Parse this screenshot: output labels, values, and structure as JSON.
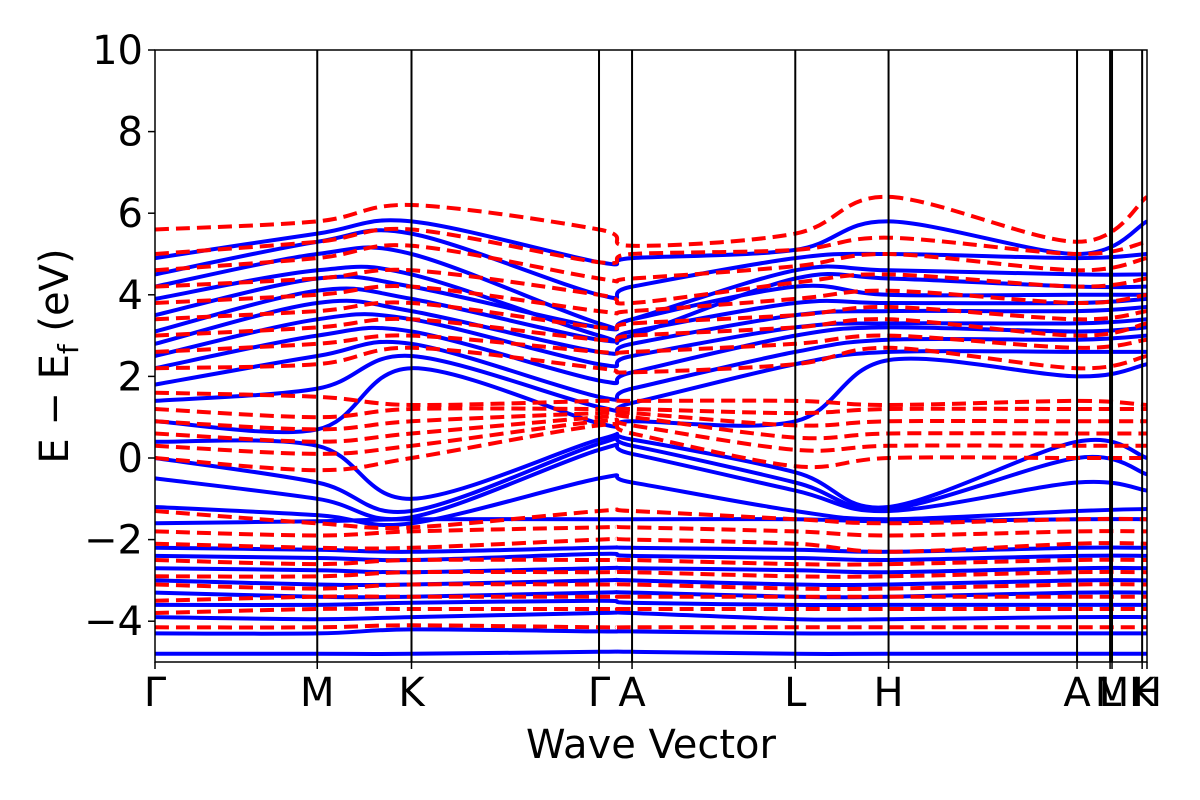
{
  "chart_data": {
    "type": "line",
    "title": "",
    "xlabel": "Wave Vector",
    "ylabel": "E − E_f (eV)",
    "ylabel_parts": {
      "pre": "E − E",
      "sub": "f",
      "post": " (eV)"
    },
    "ylim": [
      -5,
      10
    ],
    "yticks": [
      -4,
      -2,
      0,
      2,
      4,
      6,
      8,
      10
    ],
    "ytick_labels": [
      "−4",
      "−2",
      "0",
      "2",
      "4",
      "6",
      "8",
      "10"
    ],
    "xlim": [
      0,
      10.21
    ],
    "kpoints": [
      {
        "label": "Γ",
        "x": 0.0
      },
      {
        "label": "M",
        "x": 1.67
      },
      {
        "label": "K",
        "x": 2.64
      },
      {
        "label": "Γ",
        "x": 4.57
      },
      {
        "label": "A",
        "x": 4.91
      },
      {
        "label": "L",
        "x": 6.59
      },
      {
        "label": "H",
        "x": 7.55
      },
      {
        "label": "A",
        "x": 9.49
      },
      {
        "label": "L",
        "x": 9.83
      },
      {
        "label": "M",
        "x": 9.85
      },
      {
        "label": "K",
        "x": 10.16
      },
      {
        "label": "H",
        "x": 10.21
      }
    ],
    "grid": false,
    "legend": "none",
    "series": [
      {
        "style": "solid",
        "color": "#0000ff",
        "x": [
          0,
          1.67,
          2.64,
          4.57,
          4.91,
          6.59,
          7.55,
          9.49,
          10.21
        ],
        "bands": [
          [
            -4.8,
            -4.8,
            -4.8,
            -4.75,
            -4.75,
            -4.8,
            -4.8,
            -4.8,
            -4.8
          ],
          [
            -4.3,
            -4.3,
            -4.2,
            -4.25,
            -4.25,
            -4.3,
            -4.3,
            -4.3,
            -4.3
          ],
          [
            -3.9,
            -3.95,
            -3.9,
            -3.8,
            -3.8,
            -3.95,
            -3.95,
            -3.9,
            -3.9
          ],
          [
            -3.6,
            -3.6,
            -3.55,
            -3.5,
            -3.55,
            -3.6,
            -3.6,
            -3.6,
            -3.6
          ],
          [
            -3.3,
            -3.4,
            -3.4,
            -3.3,
            -3.3,
            -3.4,
            -3.4,
            -3.3,
            -3.3
          ],
          [
            -3.0,
            -3.1,
            -3.1,
            -3.0,
            -3.0,
            -3.1,
            -3.1,
            -3.0,
            -3.0
          ],
          [
            -2.7,
            -2.75,
            -2.8,
            -2.7,
            -2.7,
            -2.75,
            -2.8,
            -2.7,
            -2.7
          ],
          [
            -2.4,
            -2.45,
            -2.5,
            -2.35,
            -2.4,
            -2.45,
            -2.5,
            -2.4,
            -2.4
          ],
          [
            -2.2,
            -2.25,
            -2.3,
            -2.2,
            -2.2,
            -2.25,
            -2.3,
            -2.2,
            -2.2
          ],
          [
            -1.6,
            -1.55,
            -1.5,
            -1.5,
            -1.5,
            -1.5,
            -1.55,
            -1.5,
            -1.5
          ],
          [
            -1.2,
            -1.4,
            -1.6,
            -0.5,
            -0.6,
            -1.3,
            -1.5,
            -1.3,
            -1.25
          ],
          [
            -0.5,
            -1.0,
            -1.45,
            0.2,
            0.1,
            -0.8,
            -1.3,
            -0.6,
            -0.8
          ],
          [
            0.0,
            -0.6,
            -1.3,
            0.35,
            0.3,
            -0.6,
            -1.25,
            0.0,
            -0.4
          ],
          [
            0.4,
            0.3,
            -1.0,
            0.45,
            0.45,
            -0.35,
            -1.2,
            0.4,
            0.0
          ],
          [
            0.9,
            0.7,
            2.2,
            0.85,
            0.9,
            0.9,
            2.4,
            2.0,
            2.3
          ],
          [
            1.4,
            1.7,
            2.5,
            1.25,
            1.35,
            2.3,
            2.6,
            2.6,
            2.6
          ],
          [
            1.8,
            2.5,
            2.8,
            1.5,
            1.7,
            2.6,
            2.9,
            2.9,
            3.0
          ],
          [
            2.2,
            3.0,
            3.1,
            1.9,
            2.1,
            3.0,
            3.2,
            3.1,
            3.2
          ],
          [
            2.5,
            3.4,
            3.4,
            2.3,
            2.5,
            3.2,
            3.3,
            3.3,
            3.4
          ],
          [
            2.8,
            3.8,
            3.6,
            2.6,
            2.8,
            3.5,
            3.6,
            3.6,
            3.7
          ],
          [
            3.1,
            4.1,
            3.9,
            2.9,
            3.1,
            3.8,
            3.8,
            3.8,
            3.9
          ],
          [
            3.5,
            4.4,
            4.2,
            3.2,
            3.4,
            4.2,
            4.0,
            4.0,
            4.0
          ],
          [
            3.9,
            4.6,
            4.5,
            3.0,
            3.0,
            4.4,
            4.4,
            4.2,
            4.2
          ],
          [
            4.2,
            5.0,
            5.0,
            3.3,
            3.4,
            4.6,
            4.6,
            4.5,
            4.5
          ],
          [
            4.5,
            5.3,
            5.5,
            4.0,
            4.2,
            4.9,
            5.0,
            4.9,
            5.0
          ],
          [
            4.9,
            5.5,
            5.8,
            4.8,
            4.9,
            5.1,
            5.8,
            5.0,
            5.8
          ]
        ]
      },
      {
        "style": "dashed",
        "color": "#ff0000",
        "x": [
          0,
          1.67,
          2.64,
          4.57,
          4.91,
          6.59,
          7.55,
          9.49,
          10.21
        ],
        "bands": [
          [
            -4.15,
            -4.15,
            -4.1,
            -4.15,
            -4.15,
            -4.15,
            -4.15,
            -4.15,
            -4.15
          ],
          [
            -3.8,
            -3.7,
            -3.7,
            -3.7,
            -3.7,
            -3.7,
            -3.7,
            -3.7,
            -3.7
          ],
          [
            -3.5,
            -3.4,
            -3.4,
            -3.4,
            -3.4,
            -3.4,
            -3.4,
            -3.4,
            -3.4
          ],
          [
            -3.1,
            -3.2,
            -3.1,
            -3.1,
            -3.1,
            -3.2,
            -3.2,
            -3.1,
            -3.1
          ],
          [
            -2.9,
            -2.9,
            -2.8,
            -2.8,
            -2.8,
            -2.9,
            -2.9,
            -2.8,
            -2.8
          ],
          [
            -2.5,
            -2.6,
            -2.5,
            -2.5,
            -2.5,
            -2.6,
            -2.6,
            -2.5,
            -2.5
          ],
          [
            -2.1,
            -2.2,
            -2.2,
            -2.0,
            -2.0,
            -2.1,
            -2.3,
            -2.1,
            -2.1
          ],
          [
            -1.8,
            -1.9,
            -1.8,
            -1.7,
            -1.7,
            -1.8,
            -1.9,
            -1.8,
            -1.8
          ],
          [
            -1.3,
            -1.6,
            -1.7,
            -1.3,
            -1.3,
            -1.5,
            -1.6,
            -1.5,
            -1.5
          ],
          [
            0.0,
            -0.3,
            0.0,
            0.8,
            0.6,
            -0.2,
            0.0,
            0.0,
            0.0
          ],
          [
            0.3,
            0.1,
            0.3,
            0.9,
            0.8,
            0.2,
            0.3,
            0.3,
            0.3
          ],
          [
            0.6,
            0.4,
            0.6,
            1.0,
            1.0,
            0.5,
            0.6,
            0.6,
            0.6
          ],
          [
            0.9,
            0.7,
            0.9,
            1.1,
            1.1,
            0.8,
            0.9,
            0.9,
            0.9
          ],
          [
            1.2,
            1.0,
            1.2,
            1.2,
            1.2,
            1.1,
            1.2,
            1.2,
            1.2
          ],
          [
            1.6,
            1.5,
            1.3,
            1.4,
            1.4,
            1.4,
            1.3,
            1.4,
            1.3
          ],
          [
            2.2,
            2.3,
            2.7,
            2.2,
            2.1,
            2.3,
            2.7,
            2.2,
            2.5
          ],
          [
            2.6,
            2.8,
            3.0,
            2.6,
            2.6,
            2.8,
            3.0,
            2.7,
            2.9
          ],
          [
            3.0,
            3.2,
            3.4,
            2.9,
            3.0,
            3.2,
            3.4,
            3.0,
            3.3
          ],
          [
            3.4,
            3.6,
            3.8,
            3.2,
            3.3,
            3.5,
            3.7,
            3.4,
            3.6
          ],
          [
            3.8,
            4.0,
            4.2,
            3.6,
            3.6,
            3.9,
            4.1,
            3.8,
            4.0
          ],
          [
            4.2,
            4.4,
            4.6,
            4.0,
            3.8,
            4.3,
            4.5,
            4.2,
            4.4
          ],
          [
            4.6,
            4.9,
            5.2,
            4.4,
            4.4,
            4.7,
            5.0,
            4.6,
            4.9
          ],
          [
            5.0,
            5.3,
            5.6,
            4.8,
            5.0,
            5.1,
            5.4,
            5.0,
            5.3
          ],
          [
            5.6,
            5.8,
            6.2,
            5.6,
            5.2,
            5.5,
            6.4,
            5.3,
            6.4
          ]
        ]
      }
    ]
  }
}
